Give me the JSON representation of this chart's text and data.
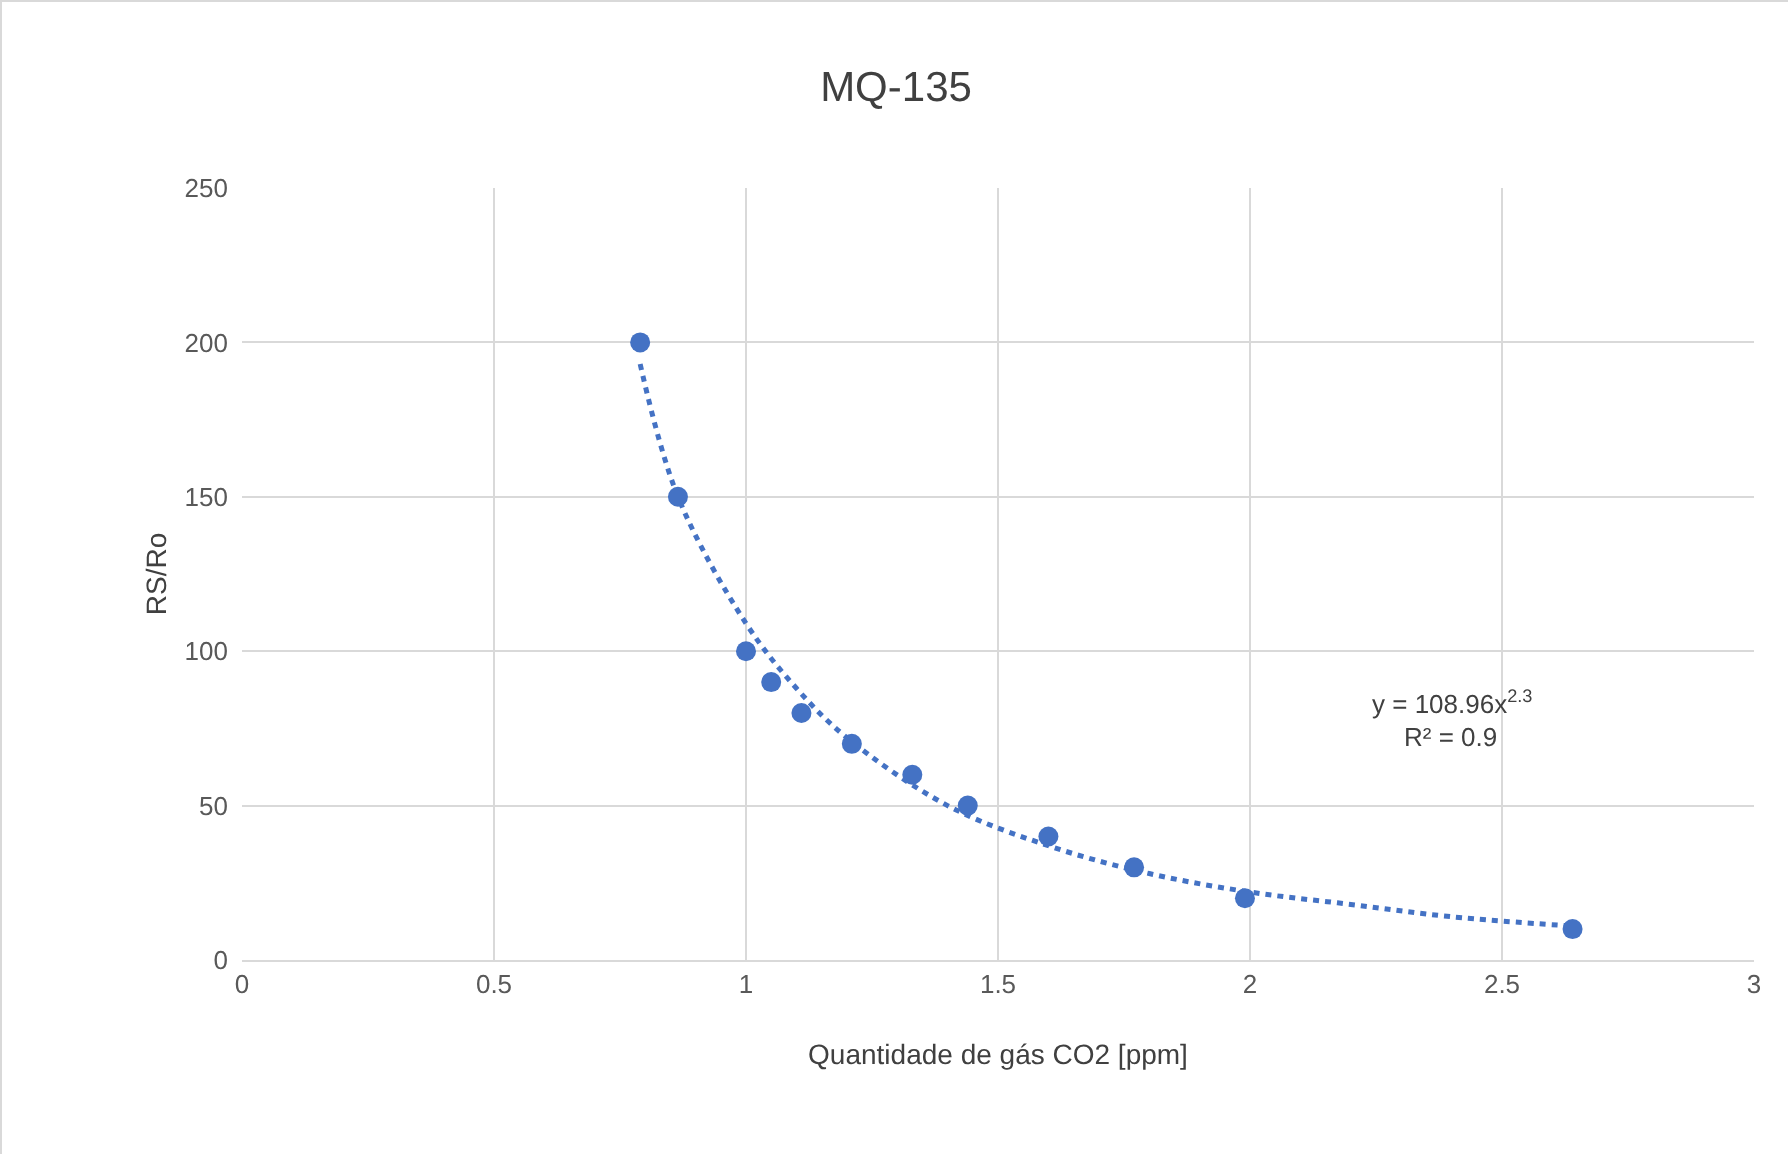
{
  "chart_data": {
    "type": "scatter",
    "title": "MQ-135",
    "xlabel": "Quantidade de gás CO2 [ppm]",
    "ylabel": "RS/Ro",
    "xlim": [
      0,
      3
    ],
    "xticks": [
      0,
      0.5,
      1,
      1.5,
      2,
      2.5,
      3
    ],
    "ylim": [
      0,
      250
    ],
    "yticks": [
      0,
      50,
      100,
      150,
      200,
      250
    ],
    "grid": true,
    "marker": "circle",
    "series": [
      {
        "type": "scatter",
        "color": "#4472c4",
        "x": [
          0.79,
          0.865,
          1.0,
          1.05,
          1.11,
          1.21,
          1.33,
          1.44,
          1.6,
          1.77,
          1.99,
          2.64
        ],
        "values": [
          200,
          150,
          100,
          90,
          80,
          70,
          60,
          50,
          40,
          30,
          20,
          10
        ]
      },
      {
        "type": "line",
        "color": "#4472c4",
        "marker": "none",
        "line_style": "dotted",
        "x": [
          0.79,
          0.865,
          1.0,
          1.1,
          1.2,
          1.4,
          1.6,
          1.8,
          2.0,
          2.2,
          2.4,
          2.64
        ],
        "values": [
          193,
          150,
          109,
          88,
          72,
          50,
          37,
          28,
          22,
          18,
          14,
          11
        ]
      }
    ],
    "annotations": [
      "y = 108.96x$^{2.3}$",
      "R² = 0.9"
    ]
  }
}
